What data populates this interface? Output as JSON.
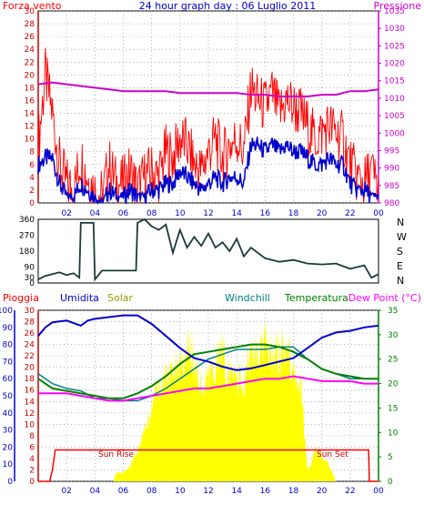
{
  "colors": {
    "wind_speed": "#ff0000",
    "wind_avg": "#0000cc",
    "pressure": "#cc00cc",
    "direction": "#1a3a3a",
    "rain": "#ff0000",
    "humidity": "#0000cc",
    "solar": "#ffff00",
    "windchill": "#008080",
    "temperature": "#008000",
    "dewpoint": "#ff00ff",
    "grid": "#888888",
    "frame": "#000000"
  },
  "headers": {
    "forza_vento": "Forza vento",
    "title": "24 hour graph day : 06 Luglio 2011",
    "pressione": "Pressione",
    "pioggia": "Pioggia",
    "umidita": "Umidita",
    "solar": "Solar",
    "windchill": "Windchill",
    "temperatura": "Temperatura",
    "dew_point": "Dew Point (°C)"
  },
  "annotations": {
    "sun_rise": "Sun Rise",
    "sun_set": "Sun Set"
  },
  "compass": [
    "N",
    "W",
    "S",
    "E",
    "N"
  ],
  "chart_data": [
    {
      "type": "line",
      "title": "24 hour graph day : 06 Luglio 2011",
      "x_ticks": [
        "02",
        "04",
        "06",
        "08",
        "10",
        "12",
        "14",
        "16",
        "18",
        "20",
        "22",
        "00"
      ],
      "xlim": [
        0,
        24
      ],
      "y_left": {
        "label": "Forza vento",
        "ticks": [
          "0",
          "2",
          "4",
          "6",
          "8",
          "10",
          "12",
          "14",
          "16",
          "18",
          "20",
          "22",
          "24",
          "26",
          "28",
          "30"
        ],
        "ylim": [
          0,
          30
        ]
      },
      "y_right": {
        "label": "Pressione",
        "ticks": [
          "980",
          "985",
          "990",
          "995",
          "1000",
          "1005",
          "1010",
          "1015",
          "1020",
          "1025",
          "1030",
          "1035"
        ],
        "ylim": [
          980,
          1035
        ]
      },
      "series": [
        {
          "name": "Forza vento",
          "axis": "left",
          "x": [
            0,
            0.5,
            1,
            1.5,
            2,
            2.5,
            3,
            3.5,
            4,
            4.5,
            5,
            5.5,
            6,
            6.5,
            7,
            7.5,
            8,
            8.5,
            9,
            9.5,
            10,
            10.5,
            11,
            11.5,
            12,
            12.5,
            13,
            13.5,
            14,
            14.5,
            15,
            15.5,
            16,
            16.5,
            17,
            17.5,
            18,
            18.5,
            19,
            19.5,
            20,
            20.5,
            21,
            21.5,
            22,
            22.5,
            23,
            23.5,
            24
          ],
          "y": [
            9,
            20,
            14,
            6,
            3,
            2,
            7,
            4,
            2,
            1,
            6,
            3,
            3,
            5,
            2,
            4,
            5,
            4,
            8,
            7,
            10,
            9,
            6,
            5,
            8,
            10,
            7,
            9,
            10,
            8,
            18,
            16,
            15,
            17,
            14,
            16,
            15,
            14,
            12,
            10,
            11,
            12,
            11,
            10,
            6,
            4,
            3,
            5,
            2
          ]
        },
        {
          "name": "Media vento",
          "axis": "left",
          "x": [
            0,
            0.5,
            1,
            1.5,
            2,
            2.5,
            3,
            3.5,
            4,
            4.5,
            5,
            5.5,
            6,
            6.5,
            7,
            7.5,
            8,
            8.5,
            9,
            9.5,
            10,
            10.5,
            11,
            11.5,
            12,
            12.5,
            13,
            13.5,
            14,
            14.5,
            15,
            15.5,
            16,
            16.5,
            17,
            17.5,
            18,
            18.5,
            19,
            19.5,
            20,
            20.5,
            21,
            21.5,
            22,
            22.5,
            23,
            23.5,
            24
          ],
          "y": [
            6,
            7,
            7,
            3,
            1,
            1,
            3,
            2,
            1,
            0,
            2,
            1,
            1,
            2,
            1,
            1,
            2,
            2,
            3,
            3,
            5,
            4,
            3,
            2,
            3,
            4,
            3,
            4,
            4,
            3,
            9,
            9,
            8,
            9,
            8,
            9,
            8,
            8,
            7,
            6,
            6,
            7,
            6,
            6,
            3,
            2,
            2,
            1,
            1
          ]
        },
        {
          "name": "Pressione",
          "axis": "right",
          "x": [
            0,
            1,
            2,
            3,
            4,
            5,
            6,
            7,
            8,
            9,
            10,
            11,
            12,
            13,
            14,
            15,
            16,
            17,
            18,
            19,
            20,
            21,
            22,
            23,
            24
          ],
          "y": [
            1014,
            1014.5,
            1014,
            1013.5,
            1013,
            1012.5,
            1012,
            1012,
            1012,
            1012,
            1011.5,
            1011.5,
            1011.5,
            1011.5,
            1011.5,
            1011,
            1011,
            1010.5,
            1010.5,
            1010.5,
            1011,
            1011,
            1012,
            1012,
            1012.5
          ]
        }
      ]
    },
    {
      "type": "line",
      "title": "",
      "xlim": [
        0,
        24
      ],
      "y_left": {
        "ticks": [
          "0",
          "30",
          "90",
          "180",
          "270",
          "360"
        ],
        "ylim": [
          0,
          360
        ]
      },
      "series": [
        {
          "name": "",
          "x": [
            0,
            0.5,
            1,
            1.5,
            2,
            2.5,
            2.9,
            3.0,
            3.9,
            4.0,
            4.5,
            5,
            5.5,
            6,
            6.5,
            6.9,
            7.0,
            7.5,
            8,
            8.5,
            9,
            9.5,
            10,
            10.5,
            11,
            11.5,
            12,
            12.5,
            13,
            13.5,
            14,
            14.5,
            15,
            16,
            17,
            18,
            19,
            20,
            21,
            22,
            23,
            23.5,
            24
          ],
          "y": [
            20,
            40,
            50,
            60,
            45,
            55,
            30,
            340,
            340,
            20,
            70,
            70,
            70,
            70,
            70,
            70,
            340,
            360,
            320,
            300,
            330,
            170,
            300,
            200,
            260,
            210,
            280,
            200,
            230,
            180,
            250,
            150,
            200,
            140,
            120,
            130,
            110,
            105,
            110,
            80,
            100,
            30,
            50
          ]
        }
      ]
    },
    {
      "type": "line",
      "title": "",
      "x_ticks": [
        "02",
        "04",
        "06",
        "08",
        "10",
        "12",
        "14",
        "16",
        "18",
        "20",
        "22",
        "00"
      ],
      "xlim": [
        0,
        24
      ],
      "y_left_humidity": {
        "label": "Umidita",
        "ticks": [
          "0",
          "10",
          "20",
          "30",
          "40",
          "50",
          "60",
          "70",
          "80",
          "90",
          "100"
        ],
        "ylim": [
          0,
          100
        ]
      },
      "y_left_rain": {
        "label": "Pioggia",
        "ticks": [
          "0",
          "2",
          "4",
          "6",
          "8",
          "10",
          "12",
          "14",
          "16",
          "18",
          "20",
          "22",
          "24",
          "26",
          "28",
          "30"
        ],
        "ylim": [
          0,
          30
        ]
      },
      "y_right": {
        "label": "Temperatura",
        "ticks": [
          "0",
          "5",
          "10",
          "15",
          "20",
          "25",
          "30",
          "35"
        ],
        "ylim": [
          0,
          35
        ]
      },
      "series": [
        {
          "name": "Pioggia",
          "axis": "rain",
          "x": [
            0,
            0.8,
            1.0,
            1.2,
            2,
            4,
            6,
            8,
            10,
            12,
            14,
            16,
            18,
            20,
            22,
            23.3,
            23.35,
            24
          ],
          "y": [
            0,
            0,
            2,
            5.5,
            5.5,
            5.5,
            5.5,
            5.5,
            5.5,
            5.5,
            5.5,
            5.5,
            5.5,
            5.5,
            5.5,
            5.5,
            0,
            0
          ]
        },
        {
          "name": "Umidita",
          "axis": "humidity",
          "x": [
            0,
            0.5,
            1,
            2,
            3,
            3.5,
            4,
            5,
            6,
            7,
            8,
            9,
            10,
            11,
            12,
            13,
            14,
            15,
            16,
            17,
            18,
            19,
            20,
            21,
            22,
            23,
            24
          ],
          "y": [
            85,
            90,
            93,
            94,
            91,
            94,
            95,
            96,
            97,
            97,
            92,
            85,
            78,
            72,
            70,
            67,
            65,
            66,
            68,
            70,
            72,
            78,
            84,
            87,
            88,
            90,
            91
          ]
        },
        {
          "name": "Solar",
          "axis": "solar",
          "x": [
            0,
            5.3,
            5.5,
            6,
            6.5,
            7,
            7.5,
            8,
            8.5,
            9,
            9.5,
            10,
            10.5,
            11,
            11.5,
            12,
            12.5,
            13,
            13.5,
            14,
            14.5,
            15,
            15.5,
            16,
            16.5,
            17,
            17.5,
            18,
            18.5,
            19,
            19.3,
            19.5,
            20,
            20.5,
            21,
            24
          ],
          "y": [
            0,
            0,
            15,
            15,
            30,
            55,
            90,
            135,
            170,
            190,
            205,
            220,
            240,
            230,
            170,
            180,
            215,
            240,
            185,
            200,
            170,
            245,
            220,
            245,
            235,
            240,
            240,
            215,
            175,
            25,
            35,
            55,
            45,
            30,
            0,
            0
          ]
        },
        {
          "name": "Windchill",
          "axis": "temp",
          "x": [
            0,
            1,
            2,
            3,
            4,
            5,
            6,
            7,
            8,
            9,
            10,
            11,
            12,
            13,
            14,
            15,
            16,
            17,
            18,
            19,
            20,
            21,
            22,
            23,
            24
          ],
          "y": [
            22,
            20,
            19,
            18.5,
            17,
            17,
            16.5,
            16.5,
            17.5,
            19,
            21,
            23,
            25,
            26,
            27,
            27,
            27,
            27.5,
            27.5,
            25,
            23,
            22,
            21,
            21,
            21
          ]
        },
        {
          "name": "Temperatura",
          "axis": "temp",
          "x": [
            0,
            1,
            2,
            3,
            4,
            5,
            6,
            7,
            8,
            9,
            10,
            11,
            12,
            13,
            14,
            15,
            16,
            17,
            18,
            19,
            20,
            21,
            22,
            23,
            24
          ],
          "y": [
            21,
            19,
            18.5,
            18,
            17.5,
            17,
            17,
            18,
            19.5,
            21.5,
            24,
            26,
            26.5,
            27,
            27.5,
            28,
            28,
            27.5,
            26.5,
            25,
            23,
            22,
            21.5,
            21,
            21
          ]
        },
        {
          "name": "Dew Point",
          "axis": "temp",
          "x": [
            0,
            1,
            2,
            3,
            4,
            5,
            6,
            7,
            8,
            9,
            10,
            11,
            12,
            13,
            14,
            15,
            16,
            17,
            18,
            19,
            20,
            21,
            22,
            23,
            24
          ],
          "y": [
            18,
            18,
            18,
            17.5,
            17,
            16.5,
            16.5,
            17,
            17.5,
            18,
            18.5,
            19,
            19,
            19.5,
            20,
            20.5,
            21,
            21,
            21.5,
            21,
            20.5,
            20.5,
            20.5,
            20,
            20
          ]
        }
      ]
    }
  ]
}
